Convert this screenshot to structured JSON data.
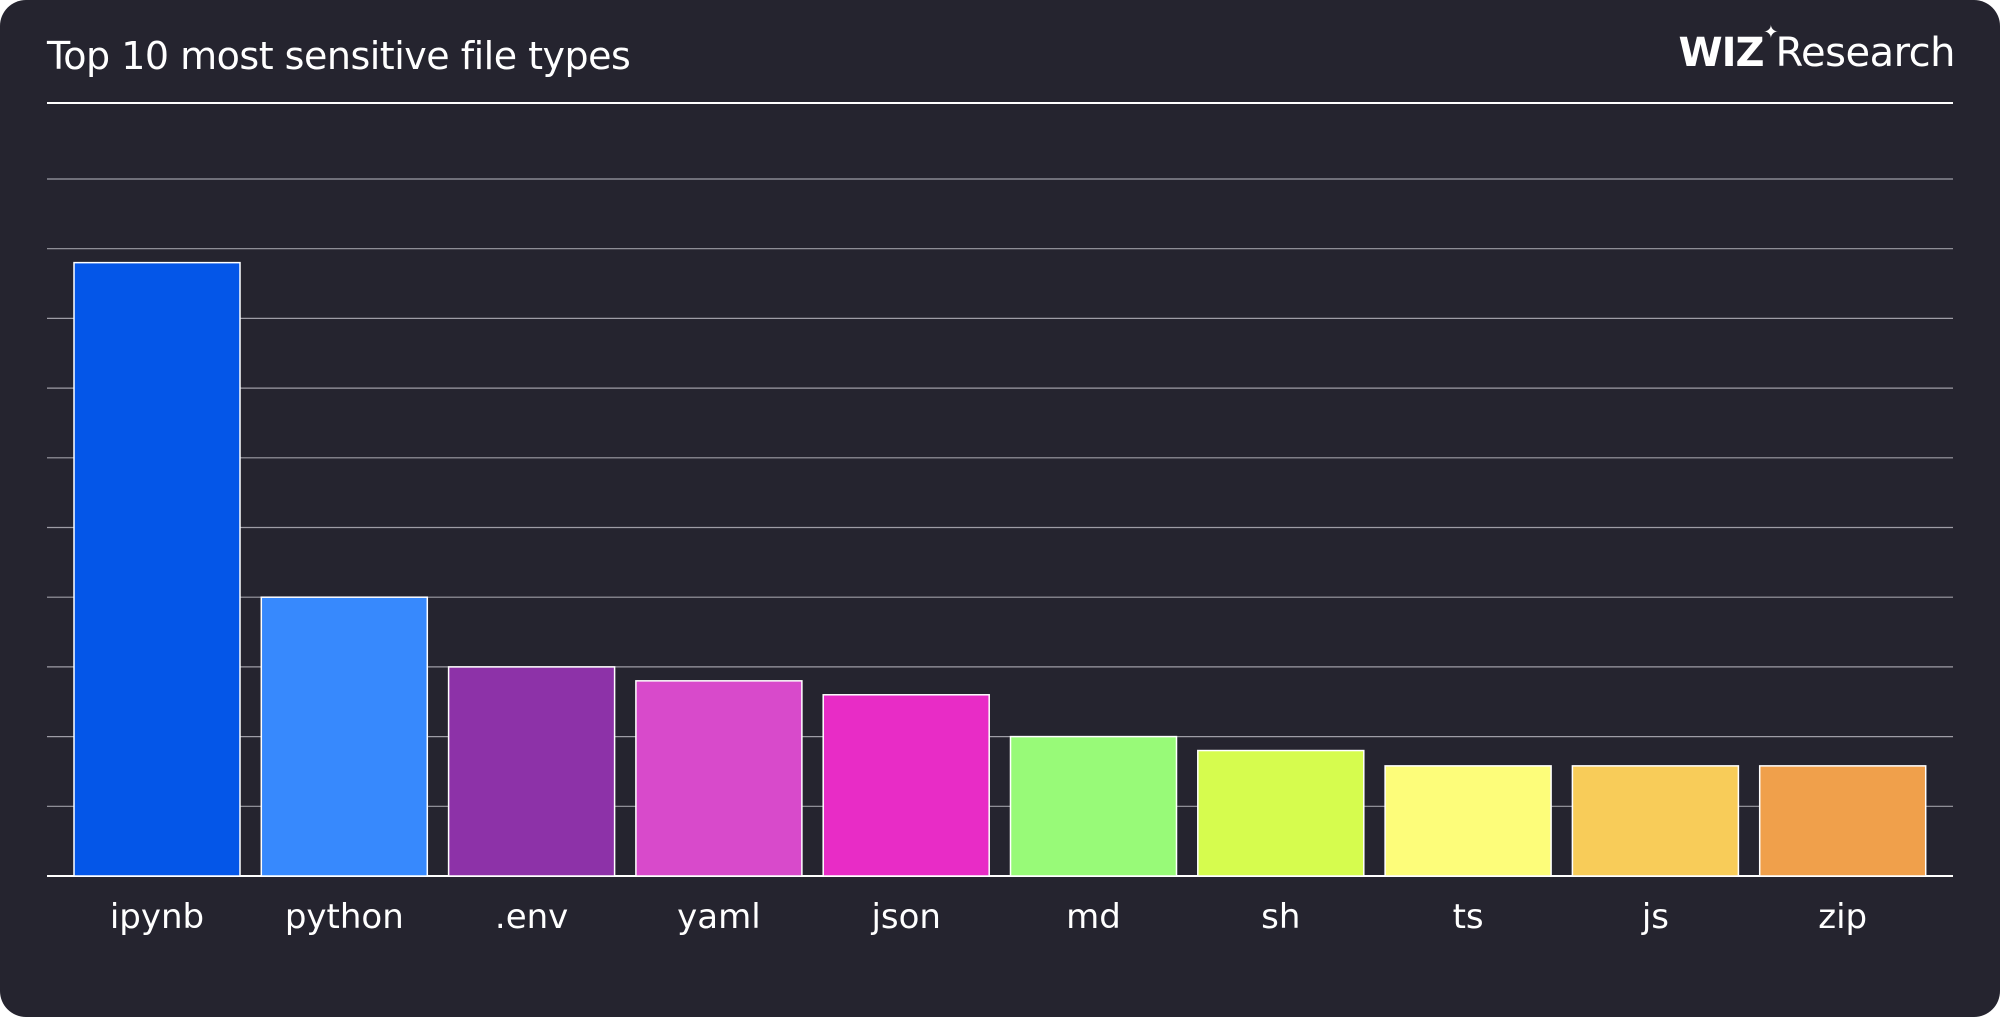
{
  "title": "Top 10 most sensitive file types",
  "brand": {
    "wiz": "WIZ",
    "star": "✦",
    "research": "Research"
  },
  "colors": {
    "background": "#25242f",
    "grid": "#9e9da6",
    "text": "#ffffff"
  },
  "chart_data": {
    "type": "bar",
    "title": "Top 10 most sensitive file types",
    "xlabel": "",
    "ylabel": "",
    "categories": [
      "ipynb",
      "python",
      ".env",
      "yaml",
      "json",
      "md",
      "sh",
      "ts",
      "js",
      "zip"
    ],
    "values": [
      8.8,
      4.0,
      3.0,
      2.8,
      2.6,
      2.0,
      1.8,
      1.58,
      1.58,
      1.58
    ],
    "colors": [
      "#0456e8",
      "#3789fd",
      "#8d32a8",
      "#d84acb",
      "#e82cc6",
      "#98fa78",
      "#d6fc4e",
      "#fdfd7a",
      "#f8cc59",
      "#f0a04b"
    ],
    "ylim": [
      0,
      10
    ],
    "grid": true,
    "y_tick_labels": false,
    "legend": "none"
  }
}
